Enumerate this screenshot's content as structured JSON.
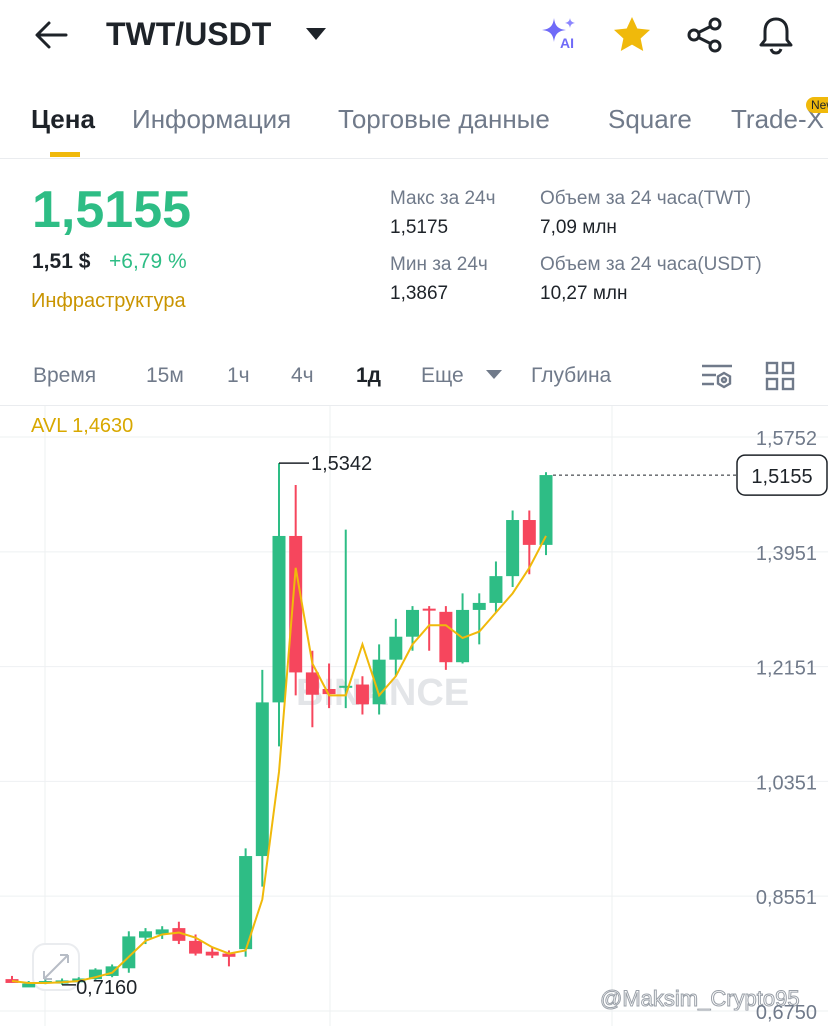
{
  "header": {
    "title": "TWT/USDT",
    "ai_label": "AI"
  },
  "tabs": [
    "Цена",
    "Информация",
    "Торговые данные",
    "Square",
    "Trade-X"
  ],
  "new_badge": "New",
  "price": {
    "last": "1,5155",
    "usd": "1,51 $",
    "change": "+6,79 %",
    "category": "Инфраструктура"
  },
  "stats": [
    {
      "label": "Макс за 24ч",
      "value": "1,5175"
    },
    {
      "label": "Объем за 24 часа(TWT)",
      "value": "7,09 млн"
    },
    {
      "label": "Мин за 24ч",
      "value": "1,3867"
    },
    {
      "label": "Объем за 24 часа(USDT)",
      "value": "10,27 млн"
    }
  ],
  "timeframes": [
    "Время",
    "15м",
    "1ч",
    "4ч",
    "1д",
    "Еще",
    "Глубина"
  ],
  "chart_data": {
    "type": "candlestick",
    "avl_label": "AVL 1,4630",
    "watermark": "BINANCE",
    "high_label": "1,5342",
    "low_label": "0,7160",
    "last_price_label": "1,5155",
    "up_color": "#2ebd85",
    "down_color": "#f6465d",
    "ma_color": "#f0b90b",
    "ylim": [
      0.675,
      1.5752
    ],
    "yticks": [
      {
        "value": 1.5752,
        "label": "1,5752"
      },
      {
        "value": 1.3951,
        "label": "1,3951"
      },
      {
        "value": 1.2151,
        "label": "1,2151"
      },
      {
        "value": 1.0351,
        "label": "1,0351"
      },
      {
        "value": 0.8551,
        "label": "0,8551"
      },
      {
        "value": 0.675,
        "label": "0,6750"
      }
    ],
    "grid": true,
    "open": [
      0.725,
      0.712,
      0.72,
      0.718,
      0.72,
      0.725,
      0.73,
      0.742,
      0.79,
      0.795,
      0.805,
      0.785,
      0.768,
      0.765,
      0.772,
      0.918,
      1.159,
      1.42,
      1.206,
      1.18,
      1.182,
      1.187,
      1.156,
      1.226,
      1.262,
      1.306,
      1.301,
      1.222,
      1.304,
      1.315,
      1.357,
      1.445,
      1.406
    ],
    "high": [
      0.73,
      0.722,
      0.724,
      0.726,
      0.728,
      0.742,
      0.748,
      0.8,
      0.805,
      0.808,
      0.815,
      0.795,
      0.775,
      0.77,
      0.93,
      1.21,
      1.5342,
      1.5,
      1.24,
      1.22,
      1.43,
      1.2,
      1.25,
      1.29,
      1.31,
      1.31,
      1.31,
      1.33,
      1.33,
      1.38,
      1.46,
      1.46,
      1.52
    ],
    "low": [
      0.72,
      0.718,
      0.717,
      0.716,
      0.718,
      0.722,
      0.728,
      0.735,
      0.78,
      0.788,
      0.78,
      0.762,
      0.758,
      0.745,
      0.76,
      0.87,
      1.09,
      1.17,
      1.12,
      1.15,
      1.15,
      1.14,
      1.14,
      1.2,
      1.24,
      1.24,
      1.21,
      1.22,
      1.25,
      1.3,
      1.34,
      1.36,
      1.39
    ],
    "close": [
      0.719,
      0.718,
      0.722,
      0.723,
      0.726,
      0.74,
      0.745,
      0.792,
      0.8,
      0.803,
      0.785,
      0.765,
      0.762,
      0.76,
      0.918,
      1.159,
      1.42,
      1.206,
      1.171,
      1.172,
      1.185,
      1.156,
      1.226,
      1.262,
      1.304,
      1.303,
      1.222,
      1.304,
      1.315,
      1.357,
      1.445,
      1.406,
      1.5155
    ],
    "ma": [
      0.722,
      0.719,
      0.719,
      0.72,
      0.722,
      0.728,
      0.735,
      0.76,
      0.785,
      0.795,
      0.798,
      0.79,
      0.775,
      0.765,
      0.77,
      0.85,
      1.05,
      1.37,
      1.22,
      1.17,
      1.17,
      1.25,
      1.17,
      1.2,
      1.25,
      1.28,
      1.28,
      1.26,
      1.27,
      1.3,
      1.33,
      1.37,
      1.42
    ]
  },
  "footer_watermark": "@Maksim_Crypto95"
}
